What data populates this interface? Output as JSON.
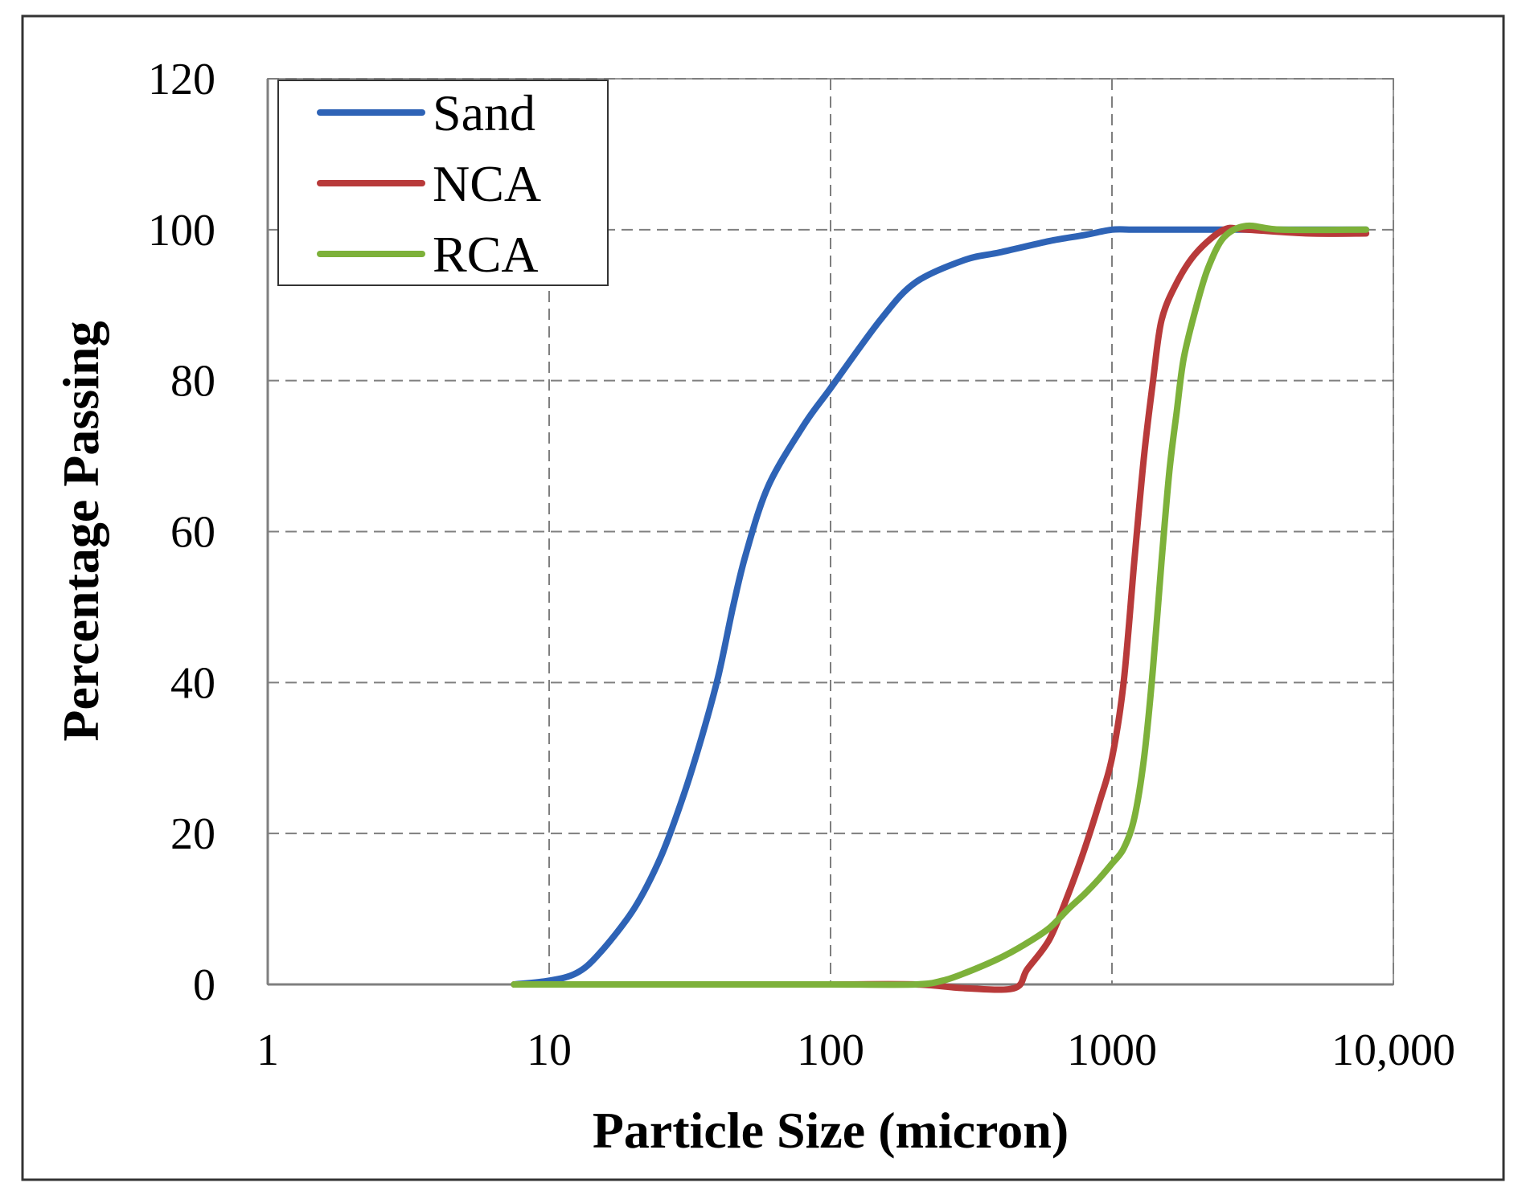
{
  "chart_data": {
    "type": "line",
    "title": "",
    "xlabel": "Particle Size (micron)",
    "ylabel": "Percentage Passing",
    "x_scale": "log",
    "xlim": [
      1,
      10000
    ],
    "ylim": [
      0,
      120
    ],
    "x_ticks": [
      {
        "value": 1,
        "label": "1"
      },
      {
        "value": 10,
        "label": "10"
      },
      {
        "value": 100,
        "label": "100"
      },
      {
        "value": 1000,
        "label": "1000"
      },
      {
        "value": 10000,
        "label": "10,000"
      }
    ],
    "y_ticks": [
      {
        "value": 0,
        "label": "0"
      },
      {
        "value": 20,
        "label": "20"
      },
      {
        "value": 40,
        "label": "40"
      },
      {
        "value": 60,
        "label": "60"
      },
      {
        "value": 80,
        "label": "80"
      },
      {
        "value": 100,
        "label": "100"
      },
      {
        "value": 120,
        "label": "120"
      }
    ],
    "grid": "dashed",
    "legend_position": "top-left",
    "series": [
      {
        "name": "Sand",
        "color": "#2E63B6",
        "x": [
          7.5,
          10,
          12.5,
          15,
          20,
          25,
          30,
          35,
          40,
          45,
          50,
          60,
          80,
          100,
          150,
          200,
          300,
          400,
          600,
          800,
          1000,
          1200,
          1500,
          2000,
          3000,
          5000,
          8000
        ],
        "y": [
          0,
          0.5,
          1.5,
          4,
          10,
          17,
          25,
          33,
          41,
          50,
          57,
          66,
          74,
          79,
          88,
          93,
          96,
          97,
          98.5,
          99.3,
          100,
          100,
          100,
          100,
          100,
          100,
          100
        ]
      },
      {
        "name": "NCA",
        "color": "#B83A3A",
        "x": [
          7.5,
          50,
          100,
          200,
          300,
          450,
          500,
          600,
          700,
          800,
          900,
          1000,
          1100,
          1200,
          1300,
          1400,
          1500,
          1700,
          2000,
          2500,
          3000,
          5000,
          8000
        ],
        "y": [
          0,
          0,
          0,
          0,
          -0.5,
          -0.5,
          2,
          6,
          12,
          18,
          24,
          30,
          40,
          56,
          70,
          80,
          88,
          93,
          97,
          100,
          100,
          99.5,
          99.5
        ]
      },
      {
        "name": "RCA",
        "color": "#7DB13A",
        "x": [
          7.5,
          50,
          100,
          200,
          250,
          300,
          400,
          500,
          600,
          700,
          800,
          900,
          1000,
          1100,
          1200,
          1300,
          1400,
          1500,
          1600,
          1700,
          1800,
          2000,
          2200,
          2500,
          3000,
          4000,
          8000
        ],
        "y": [
          0,
          0,
          0,
          0,
          0.5,
          1.5,
          3.5,
          5.5,
          7.5,
          10,
          12,
          14,
          16,
          18,
          22,
          30,
          42,
          56,
          68,
          76,
          83,
          90,
          95,
          99,
          100.5,
          100,
          100
        ]
      }
    ]
  }
}
